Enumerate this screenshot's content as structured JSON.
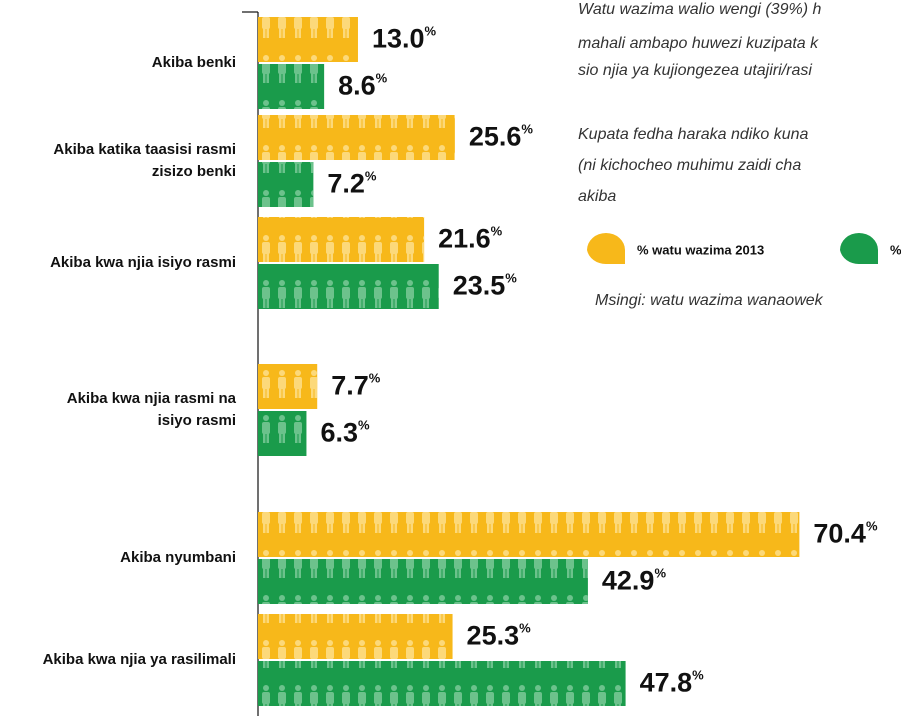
{
  "chart_data": {
    "type": "bar",
    "orientation": "horizontal",
    "categories": [
      [
        "Akiba benki"
      ],
      [
        "Akiba katika taasisi rasmi",
        "zisizo benki"
      ],
      [
        "Akiba kwa njia isiyo rasmi"
      ],
      [
        "Akiba kwa njia rasmi na",
        "isiyo rasmi"
      ],
      [
        "Akiba nyumbani"
      ],
      [
        "Akiba kwa njia ya rasilimali"
      ]
    ],
    "series": [
      {
        "name": "% watu wazima 2013",
        "color": "#f7b81a",
        "values": [
          13.0,
          25.6,
          21.6,
          7.7,
          70.4,
          25.3
        ],
        "value_labels": [
          "13.0",
          "25.6",
          "21.6",
          "7.7",
          "70.4",
          "25.3"
        ]
      },
      {
        "name": "%",
        "color": "#1a9b4b",
        "values": [
          8.6,
          7.2,
          23.5,
          6.3,
          42.9,
          47.8
        ],
        "value_labels": [
          "8.6",
          "7.2",
          "23.5",
          "6.3",
          "42.9",
          "47.8"
        ]
      }
    ],
    "unit": "%",
    "xlim": [
      0,
      100
    ],
    "annotations": [
      "Watu wazima walio wengi (39%) h",
      "mahali ambapo huwezi kuzipata k",
      "sio njia ya kujiongezea utajiri/rasi",
      "Kupata fedha haraka ndiko kuna",
      "(ni kichocheo muhimu zaidi cha",
      "akiba"
    ],
    "base_note": "Msingi: watu wazima wanaowek"
  }
}
